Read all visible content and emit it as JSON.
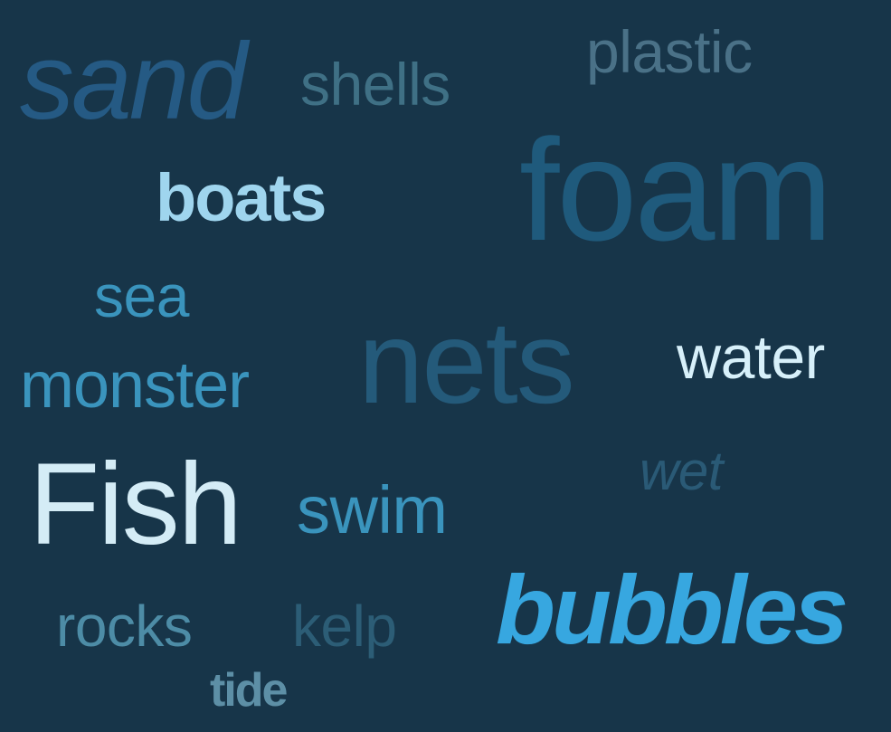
{
  "cloud": {
    "background_color": "#173549",
    "words": {
      "sand": "sand",
      "shells": "shells",
      "plastic": "plastic",
      "boats": "boats",
      "foam": "foam",
      "sea": "sea",
      "nets": "nets",
      "water": "water",
      "monster": "monster",
      "wet": "wet",
      "fish": "Fish",
      "swim": "swim",
      "bubbles": "bubbles",
      "rocks": "rocks",
      "kelp": "kelp",
      "tide": "tide"
    },
    "colors": {
      "sand": "#255a84",
      "shells": "#3f7085",
      "plastic": "#4a7187",
      "boats": "#9fd5ee",
      "foam": "#1f5a7c",
      "sea": "#3a94bd",
      "nets": "#245a7a",
      "water": "#d7f0fa",
      "monster": "#3a94bd",
      "wet": "#2a5a76",
      "fish": "#d4ecf6",
      "swim": "#3a94bd",
      "bubbles": "#37a7e0",
      "rocks": "#4d8ca6",
      "kelp": "#2c5d76",
      "tide": "#5d8fa6"
    }
  }
}
